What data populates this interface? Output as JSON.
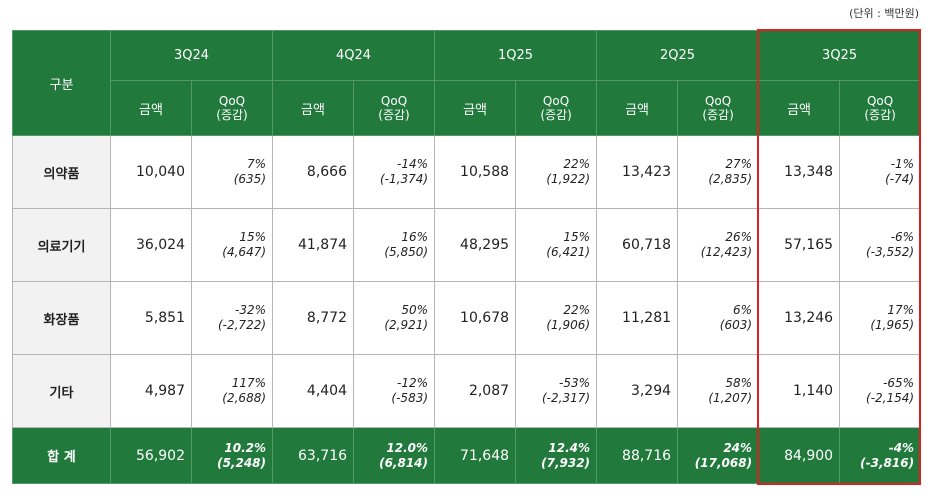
{
  "unit": "(단위 : 백만원)",
  "table": {
    "corner": "구분",
    "quarters": [
      "3Q24",
      "4Q24",
      "1Q25",
      "2Q25",
      "3Q25"
    ],
    "amount_label": "금액",
    "qoq_label": [
      "QoQ",
      "(증감)"
    ],
    "rows": [
      {
        "label": "의약품",
        "cells": [
          {
            "amount": "10,040",
            "pct": "7%",
            "change": "(635)"
          },
          {
            "amount": "8,666",
            "pct": "-14%",
            "change": "(-1,374)"
          },
          {
            "amount": "10,588",
            "pct": "22%",
            "change": "(1,922)"
          },
          {
            "amount": "13,423",
            "pct": "27%",
            "change": "(2,835)"
          },
          {
            "amount": "13,348",
            "pct": "-1%",
            "change": "(-74)"
          }
        ]
      },
      {
        "label": "의료기기",
        "cells": [
          {
            "amount": "36,024",
            "pct": "15%",
            "change": "(4,647)"
          },
          {
            "amount": "41,874",
            "pct": "16%",
            "change": "(5,850)"
          },
          {
            "amount": "48,295",
            "pct": "15%",
            "change": "(6,421)"
          },
          {
            "amount": "60,718",
            "pct": "26%",
            "change": "(12,423)"
          },
          {
            "amount": "57,165",
            "pct": "-6%",
            "change": "(-3,552)"
          }
        ]
      },
      {
        "label": "화장품",
        "cells": [
          {
            "amount": "5,851",
            "pct": "-32%",
            "change": "(-2,722)"
          },
          {
            "amount": "8,772",
            "pct": "50%",
            "change": "(2,921)"
          },
          {
            "amount": "10,678",
            "pct": "22%",
            "change": "(1,906)"
          },
          {
            "amount": "11,281",
            "pct": "6%",
            "change": "(603)"
          },
          {
            "amount": "13,246",
            "pct": "17%",
            "change": "(1,965)"
          }
        ]
      },
      {
        "label": "기타",
        "cells": [
          {
            "amount": "4,987",
            "pct": "117%",
            "change": "(2,688)"
          },
          {
            "amount": "4,404",
            "pct": "-12%",
            "change": "(-583)"
          },
          {
            "amount": "2,087",
            "pct": "-53%",
            "change": "(-2,317)"
          },
          {
            "amount": "3,294",
            "pct": "58%",
            "change": "(1,207)"
          },
          {
            "amount": "1,140",
            "pct": "-65%",
            "change": "(-2,154)"
          }
        ]
      }
    ],
    "total": {
      "label": "합 계",
      "cells": [
        {
          "amount": "56,902",
          "pct": "10.2%",
          "change": "(5,248)"
        },
        {
          "amount": "63,716",
          "pct": "12.0%",
          "change": "(6,814)"
        },
        {
          "amount": "71,648",
          "pct": "12.4%",
          "change": "(7,932)"
        },
        {
          "amount": "88,716",
          "pct": "24%",
          "change": "(17,068)"
        },
        {
          "amount": "84,900",
          "pct": "-4%",
          "change": "(-3,816)"
        }
      ]
    }
  }
}
